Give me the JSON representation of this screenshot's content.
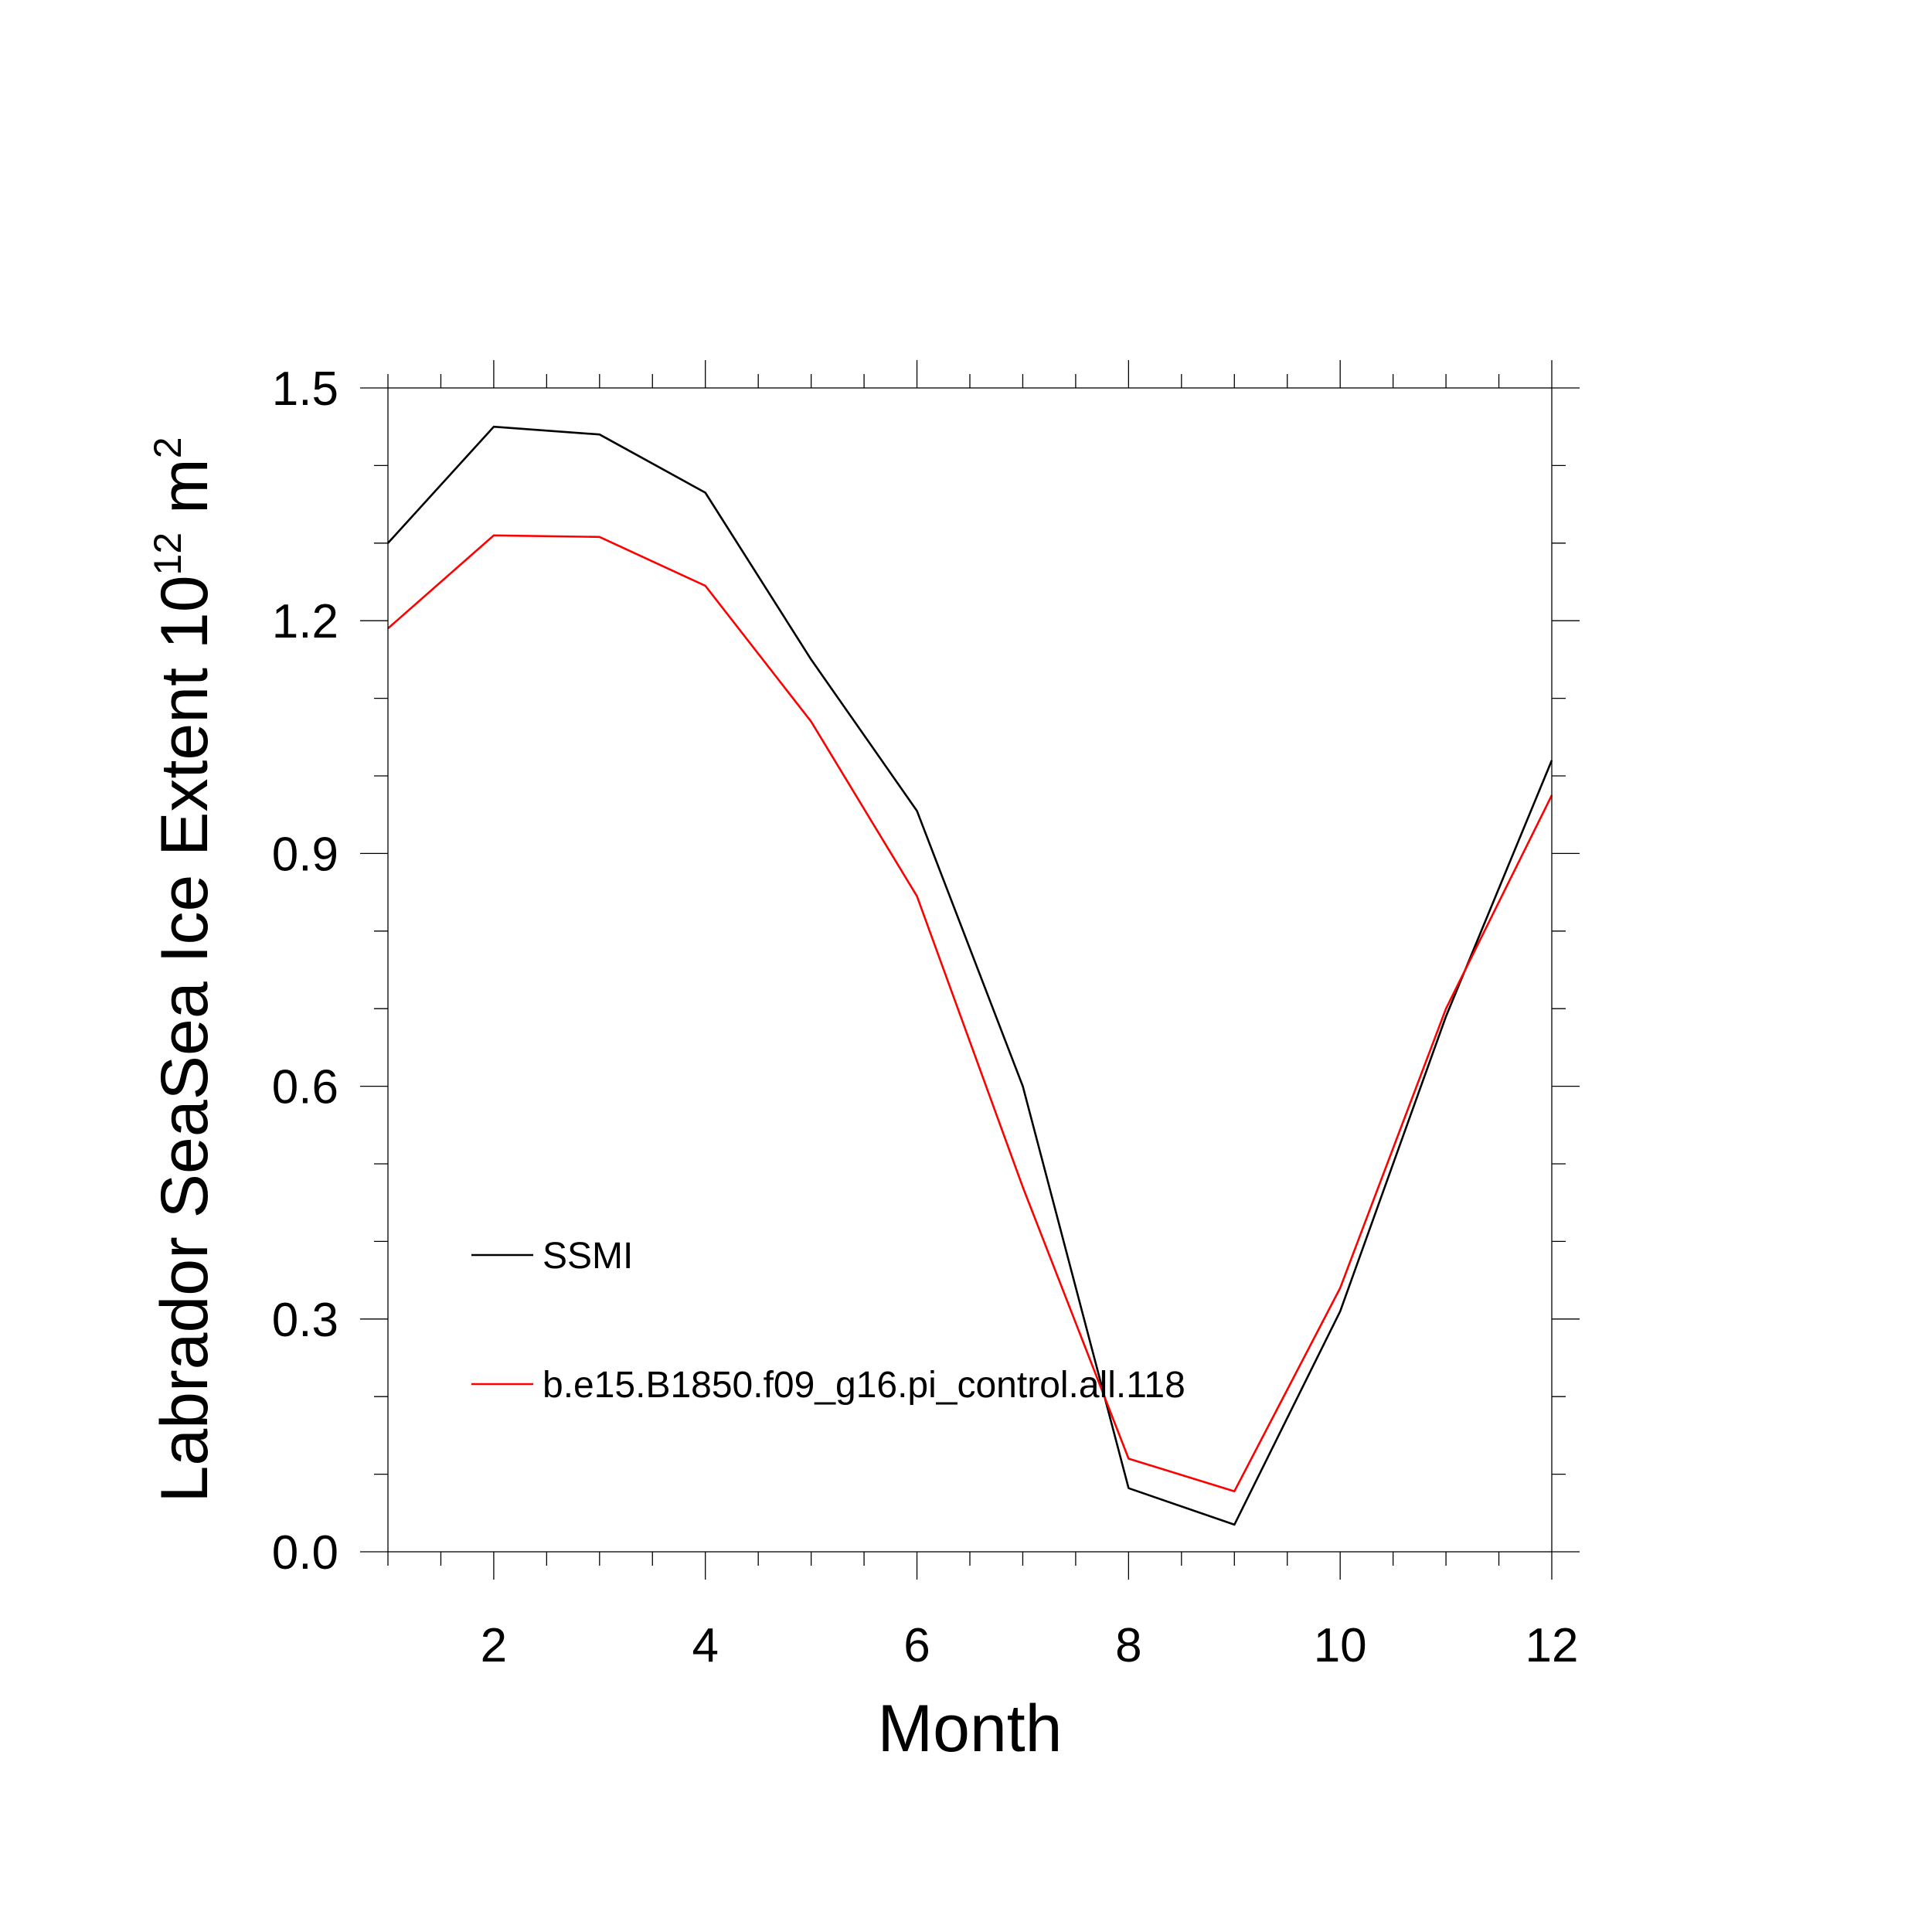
{
  "chart_data": {
    "type": "line",
    "title": "",
    "xlabel": "Month",
    "ylabel": {
      "main": "Labrador SeaSea Ice Extent 10",
      "superscript1": "12",
      "unit": " m",
      "superscript2": "2"
    },
    "xlim": [
      1,
      12
    ],
    "ylim": [
      0.0,
      1.5
    ],
    "x_ticks": [
      2,
      4,
      6,
      8,
      10,
      12
    ],
    "x_tick_labels": [
      "2",
      "4",
      "6",
      "8",
      "10",
      "12"
    ],
    "y_ticks": [
      0.0,
      0.3,
      0.6,
      0.9,
      1.2,
      1.5
    ],
    "y_tick_labels": [
      "0.0",
      "0.3",
      "0.6",
      "0.9",
      "1.2",
      "1.5"
    ],
    "grid": false,
    "legend_position": "bottom-left inside plot",
    "x": [
      1,
      2,
      3,
      4,
      5,
      6,
      7,
      8,
      9,
      10,
      11,
      12
    ],
    "series": [
      {
        "name": "SSMI",
        "color": "#000000",
        "values": [
          1.3,
          1.45,
          1.44,
          1.365,
          1.15,
          0.955,
          0.6,
          0.082,
          0.035,
          0.31,
          0.69,
          1.02
        ]
      },
      {
        "name": "b.e15.B1850.f09_g16.pi_control.all.118",
        "color": "#ff0000",
        "values": [
          1.19,
          1.31,
          1.308,
          1.245,
          1.07,
          0.845,
          0.47,
          0.12,
          0.078,
          0.34,
          0.7,
          0.975
        ]
      }
    ]
  }
}
